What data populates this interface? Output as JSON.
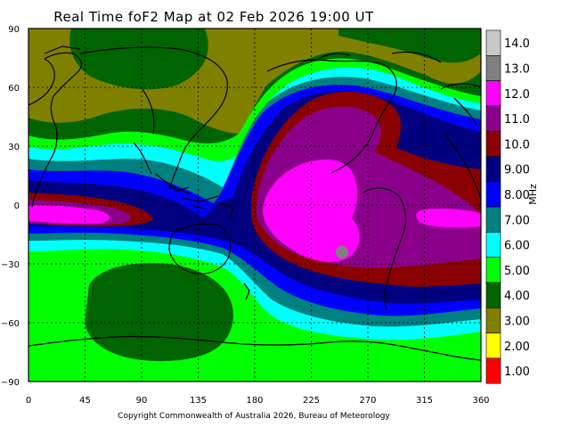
{
  "title": "Real Time foF2 Map at 02 Feb 2026 19:00 UT",
  "copyright": "Copyright Commonwealth of Australia 2026, Bureau of Meteorology",
  "colorbar": {
    "unit": "MHz",
    "levels": [
      {
        "label": "14.0",
        "color": "#c8c8c8"
      },
      {
        "label": "13.0",
        "color": "#808080"
      },
      {
        "label": "12.0",
        "color": "#ff00ff"
      },
      {
        "label": "11.0",
        "color": "#8b008b"
      },
      {
        "label": "10.0",
        "color": "#8b0000"
      },
      {
        "label": "9.00",
        "color": "#000080"
      },
      {
        "label": "8.00",
        "color": "#0000ff"
      },
      {
        "label": "7.00",
        "color": "#008080"
      },
      {
        "label": "6.00",
        "color": "#00ffff"
      },
      {
        "label": "5.00",
        "color": "#00ff00"
      },
      {
        "label": "4.00",
        "color": "#006400"
      },
      {
        "label": "3.00",
        "color": "#808000"
      },
      {
        "label": "2.00",
        "color": "#ffff00"
      },
      {
        "label": "1.00",
        "color": "#ff0000"
      }
    ]
  },
  "axes": {
    "x_ticks": [
      "0",
      "45",
      "90",
      "135",
      "180",
      "225",
      "270",
      "315",
      "360"
    ],
    "y_ticks": [
      "90",
      "60",
      "30",
      "0",
      "−30",
      "−60",
      "−90"
    ],
    "x_range": [
      0,
      360
    ],
    "y_range": [
      -90,
      90
    ],
    "grid": true
  }
}
